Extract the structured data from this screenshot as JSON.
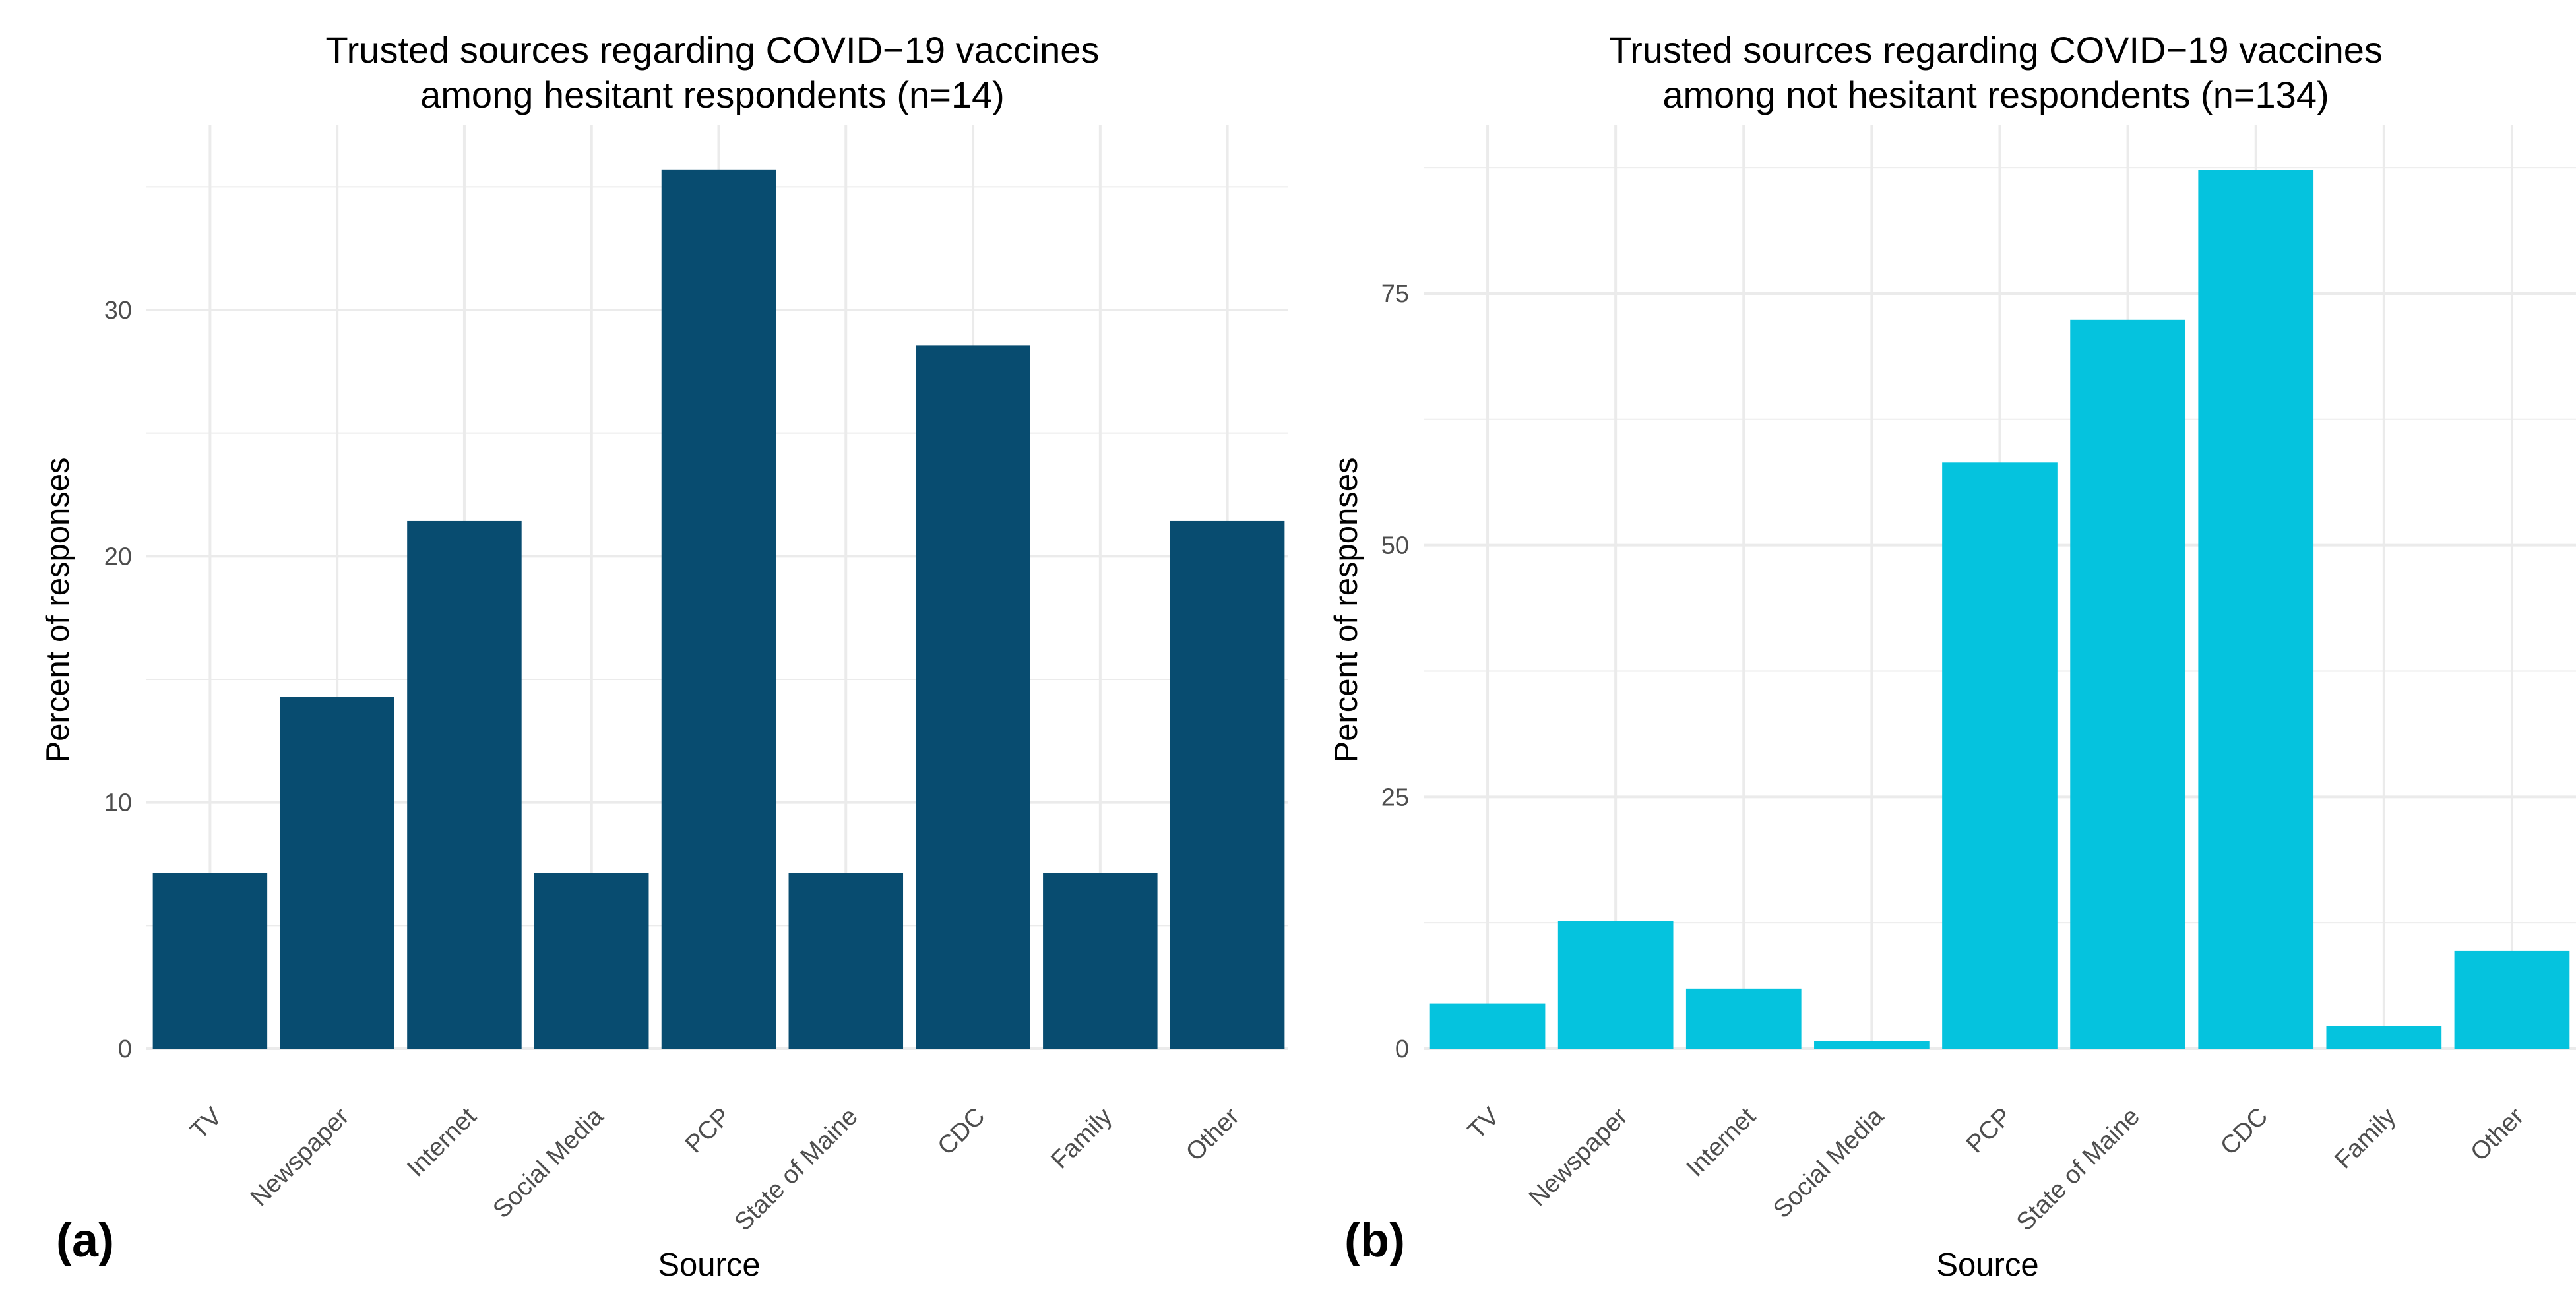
{
  "figure": {
    "panels": [
      {
        "tag": "(a)",
        "title_line1": "Trusted sources regarding COVID−19 vaccines",
        "title_line2": "among hesitant respondents (n=14)",
        "xlabel": "Source",
        "ylabel": "Percent of responses"
      },
      {
        "tag": "(b)",
        "title_line1": "Trusted sources regarding COVID−19 vaccines",
        "title_line2": "among not hesitant respondents (n=134)",
        "xlabel": "Source",
        "ylabel": "Percent of responses"
      }
    ]
  },
  "chart_data": [
    {
      "type": "bar",
      "title": "Trusted sources regarding COVID−19 vaccines among hesitant respondents (n=14)",
      "xlabel": "Source",
      "ylabel": "Percent of responses",
      "categories": [
        "TV",
        "Newspaper",
        "Internet",
        "Social Media",
        "PCP",
        "State of Maine",
        "CDC",
        "Family",
        "Other"
      ],
      "values": [
        7.14,
        14.29,
        21.43,
        7.14,
        35.71,
        7.14,
        28.57,
        7.14,
        21.43
      ],
      "ylim": [
        0,
        37.5
      ],
      "yticks": [
        0,
        10,
        20,
        30
      ],
      "grid": true,
      "bar_color": "#084c70"
    },
    {
      "type": "bar",
      "title": "Trusted sources regarding COVID−19 vaccines among not hesitant respondents (n=134)",
      "xlabel": "Source",
      "ylabel": "Percent of responses",
      "categories": [
        "TV",
        "Newspaper",
        "Internet",
        "Social Media",
        "PCP",
        "State of Maine",
        "CDC",
        "Family",
        "Other"
      ],
      "values": [
        4.48,
        12.69,
        5.97,
        0.75,
        58.21,
        72.39,
        87.31,
        2.24,
        9.7
      ],
      "ylim": [
        0,
        91.7
      ],
      "yticks": [
        0,
        25,
        50,
        75
      ],
      "grid": true,
      "bar_color": "#05c3de"
    }
  ]
}
